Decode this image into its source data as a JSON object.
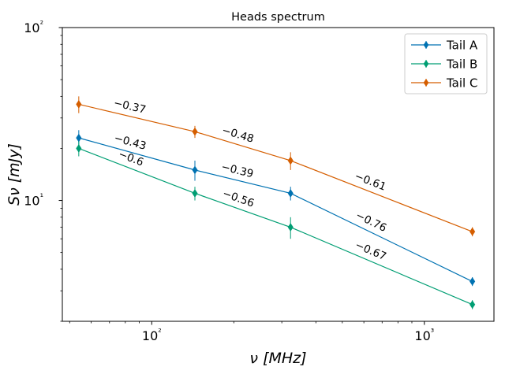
{
  "chart_data": {
    "type": "line",
    "title": "Heads spectrum",
    "xlabel": "ν [MHz]",
    "ylabel": "Sν [mJy]",
    "xscale": "log",
    "yscale": "log",
    "xlim": [
      47,
      1800
    ],
    "ylim": [
      2,
      100
    ],
    "x_ticks": [
      {
        "value": 100,
        "label": "10²"
      },
      {
        "value": 1000,
        "label": "10³"
      }
    ],
    "y_ticks": [
      {
        "value": 10,
        "label": "10¹"
      },
      {
        "value": 100,
        "label": "10²"
      }
    ],
    "legend": {
      "position": "top-right",
      "entries": [
        "Tail A",
        "Tail B",
        "Tail C"
      ]
    },
    "series": [
      {
        "name": "Tail A",
        "color": "#0072b2",
        "x": [
          54,
          144,
          323,
          1500
        ],
        "y": [
          23,
          15,
          11,
          3.4
        ],
        "err": [
          2.5,
          2,
          1,
          0.2
        ]
      },
      {
        "name": "Tail B",
        "color": "#009e73",
        "x": [
          54,
          144,
          323,
          1500
        ],
        "y": [
          20,
          11,
          7,
          2.5
        ],
        "err": [
          2,
          1,
          1,
          0.15
        ]
      },
      {
        "name": "Tail C",
        "color": "#d55e00",
        "x": [
          54,
          144,
          323,
          1500
        ],
        "y": [
          36,
          25,
          17,
          6.6
        ],
        "err": [
          4,
          2,
          2,
          0.4
        ]
      }
    ],
    "annotations": [
      {
        "series": "Tail A",
        "segment": 0,
        "text": "−0.43"
      },
      {
        "series": "Tail A",
        "segment": 1,
        "text": "−0.39"
      },
      {
        "series": "Tail A",
        "segment": 2,
        "text": "−0.76"
      },
      {
        "series": "Tail B",
        "segment": 0,
        "text": "−0.6"
      },
      {
        "series": "Tail B",
        "segment": 1,
        "text": "−0.56"
      },
      {
        "series": "Tail B",
        "segment": 2,
        "text": "−0.67"
      },
      {
        "series": "Tail C",
        "segment": 0,
        "text": "−0.37"
      },
      {
        "series": "Tail C",
        "segment": 1,
        "text": "−0.48"
      },
      {
        "series": "Tail C",
        "segment": 2,
        "text": "−0.61"
      }
    ]
  }
}
